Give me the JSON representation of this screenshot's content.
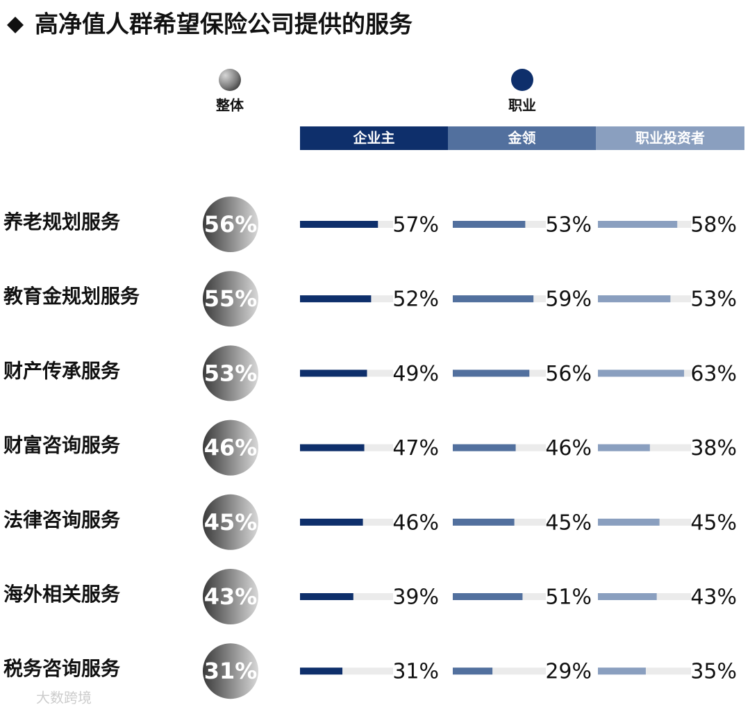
{
  "chart_data": {
    "type": "bar",
    "title": "高净值人群希望保险公司提供的服务",
    "categories": [
      "养老规划服务",
      "教育金规划服务",
      "财产传承服务",
      "财富咨询服务",
      "法律咨询服务",
      "海外相关服务",
      "税务咨询服务"
    ],
    "overall": {
      "name": "整体",
      "values": [
        56,
        55,
        53,
        46,
        45,
        43,
        31
      ],
      "value_labels": [
        "56%",
        "55%",
        "53%",
        "46%",
        "45%",
        "43%",
        "31%"
      ]
    },
    "group_name": "职业",
    "series": [
      {
        "name": "企业主",
        "color": "#0e2f6b",
        "values": [
          57,
          52,
          49,
          47,
          46,
          39,
          31
        ],
        "value_labels": [
          "57%",
          "52%",
          "49%",
          "47%",
          "46%",
          "39%",
          "31%"
        ]
      },
      {
        "name": "金领",
        "color": "#52709e",
        "values": [
          53,
          59,
          56,
          46,
          45,
          51,
          29
        ],
        "value_labels": [
          "53%",
          "59%",
          "56%",
          "46%",
          "45%",
          "51%",
          "29%"
        ]
      },
      {
        "name": "职业投资者",
        "color": "#8a9fbf",
        "values": [
          58,
          53,
          63,
          38,
          45,
          43,
          35
        ],
        "value_labels": [
          "58%",
          "53%",
          "63%",
          "38%",
          "45%",
          "43%",
          "35%"
        ]
      }
    ],
    "xlim": [
      0,
      65
    ],
    "watermark": "大数跨境"
  }
}
